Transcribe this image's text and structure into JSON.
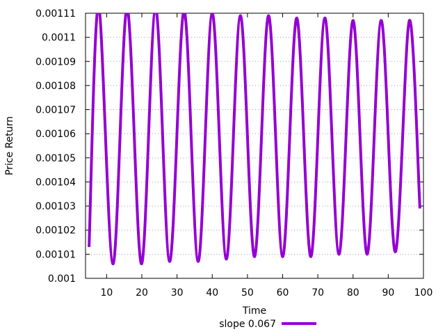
{
  "chart_data": {
    "type": "line",
    "xlabel": "Time",
    "ylabel": "Price Return",
    "xlim": [
      4,
      100
    ],
    "ylim": [
      0.001,
      0.00111
    ],
    "x_ticks": [
      10,
      20,
      30,
      40,
      50,
      60,
      70,
      80,
      90,
      100
    ],
    "x_tick_labels": [
      "10",
      "20",
      "30",
      "40",
      "50",
      "60",
      "70",
      "80",
      "90",
      "100"
    ],
    "y_ticks": [
      0.001,
      0.00101,
      0.00102,
      0.00103,
      0.00104,
      0.00105,
      0.00106,
      0.00107,
      0.00108,
      0.00109,
      0.0011,
      0.00111
    ],
    "y_tick_labels": [
      "0.001",
      "0.00101",
      "0.00102",
      "0.00103",
      "0.00104",
      "0.00105",
      "0.00106",
      "0.00107",
      "0.00108",
      "0.00109",
      "0.0011",
      "0.00111"
    ],
    "grid": true,
    "legend_position": "bottom",
    "series": [
      {
        "name": "slope 0.067",
        "color": "#9400d3",
        "x": [
          5,
          7.7,
          11.8,
          15.8,
          19.9,
          23.9,
          27.9,
          32,
          36,
          40,
          44,
          48,
          52,
          56,
          60,
          64,
          68,
          72,
          76,
          80,
          84,
          88,
          92,
          96,
          99
        ],
        "y": [
          0.001013,
          0.001113,
          0.001006,
          0.001112,
          0.001006,
          0.001112,
          0.001007,
          0.001111,
          0.001007,
          0.00111,
          0.001008,
          0.001109,
          0.001009,
          0.001109,
          0.001009,
          0.001108,
          0.001009,
          0.001108,
          0.00101,
          0.001107,
          0.00101,
          0.001107,
          0.001011,
          0.001107,
          0.001029
        ]
      }
    ]
  }
}
